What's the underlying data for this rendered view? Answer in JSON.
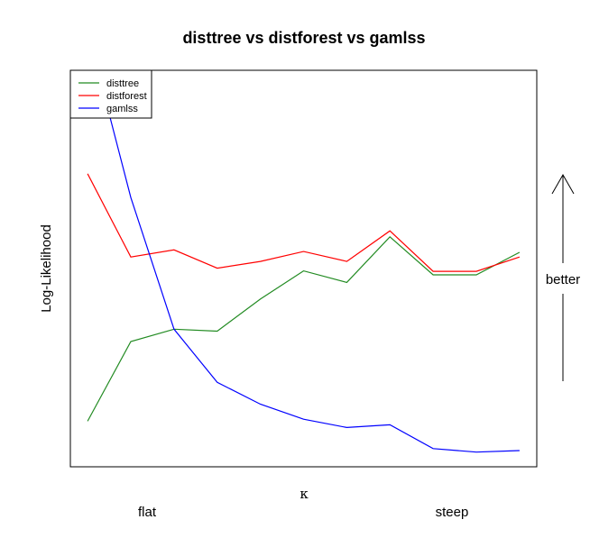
{
  "chart_data": {
    "type": "line",
    "title": "disttree vs distforest vs gamlss",
    "xlabel": "κ",
    "ylabel": "Log-Likelihood",
    "x": [
      1,
      2,
      3,
      4,
      5,
      6,
      7,
      8,
      9,
      10,
      11
    ],
    "xlim": [
      0.6,
      11.4
    ],
    "ylim": [
      0.0,
      1.0
    ],
    "x_annotations": {
      "left": "flat",
      "right": "steep"
    },
    "side_annotation": "better",
    "legend_position": "top-left",
    "grid": false,
    "series": [
      {
        "name": "disttree",
        "color": "#228B22",
        "values": [
          0.115,
          0.316,
          0.347,
          0.342,
          0.423,
          0.494,
          0.465,
          0.58,
          0.484,
          0.484,
          0.541
        ]
      },
      {
        "name": "distforest",
        "color": "#FF0000",
        "values": [
          0.739,
          0.529,
          0.547,
          0.501,
          0.518,
          0.543,
          0.518,
          0.595,
          0.493,
          0.493,
          0.529
        ]
      },
      {
        "name": "gamlss",
        "color": "#0000FF",
        "values": [
          1.1,
          0.679,
          0.347,
          0.213,
          0.158,
          0.12,
          0.099,
          0.106,
          0.046,
          0.037,
          0.041
        ]
      }
    ]
  }
}
